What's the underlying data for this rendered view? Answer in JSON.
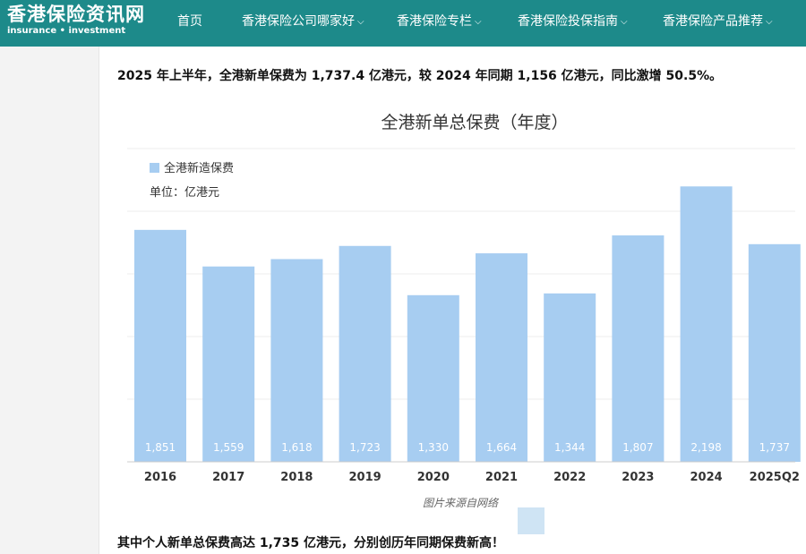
{
  "site": {
    "logo_cn": "香港保险资讯网",
    "logo_en": "insurance • investment",
    "nav": [
      {
        "label": "首页",
        "dropdown": false
      },
      {
        "label": "香港保险公司哪家好",
        "dropdown": true
      },
      {
        "label": "香港保险专栏",
        "dropdown": true
      },
      {
        "label": "香港保险投保指南",
        "dropdown": true
      },
      {
        "label": "香港保险产品推荐",
        "dropdown": true
      }
    ],
    "header_color": "#1d8a8a"
  },
  "article": {
    "para1": "2025 年上半年，全港新单保费为 1,737.4 亿港元，较 2024 年同期 1,156 亿港元，同比激增 50.5%。",
    "caption": "图片来源自网络",
    "para2": "其中个人新单总保费高达 1,735 亿港元，分别创历年同期保费新高！"
  },
  "chart_data": {
    "type": "bar",
    "title": "全港新单总保费（年度）",
    "unit_label": "单位：亿港元",
    "legend": "全港新造保费",
    "legend_placement": "top-left",
    "categories": [
      "2016",
      "2017",
      "2018",
      "2019",
      "2020",
      "2021",
      "2022",
      "2023",
      "2024",
      "2025Q2"
    ],
    "values": [
      1851,
      1559,
      1618,
      1723,
      1330,
      1664,
      1344,
      1807,
      2198,
      1737
    ],
    "value_labels": [
      "1,851",
      "1,559",
      "1,618",
      "1,723",
      "1,330",
      "1,664",
      "1,344",
      "1,807",
      "2,198",
      "1,737"
    ],
    "ylim": [
      0,
      2500
    ],
    "grid": true,
    "bar_color": "#a7cdf1"
  }
}
